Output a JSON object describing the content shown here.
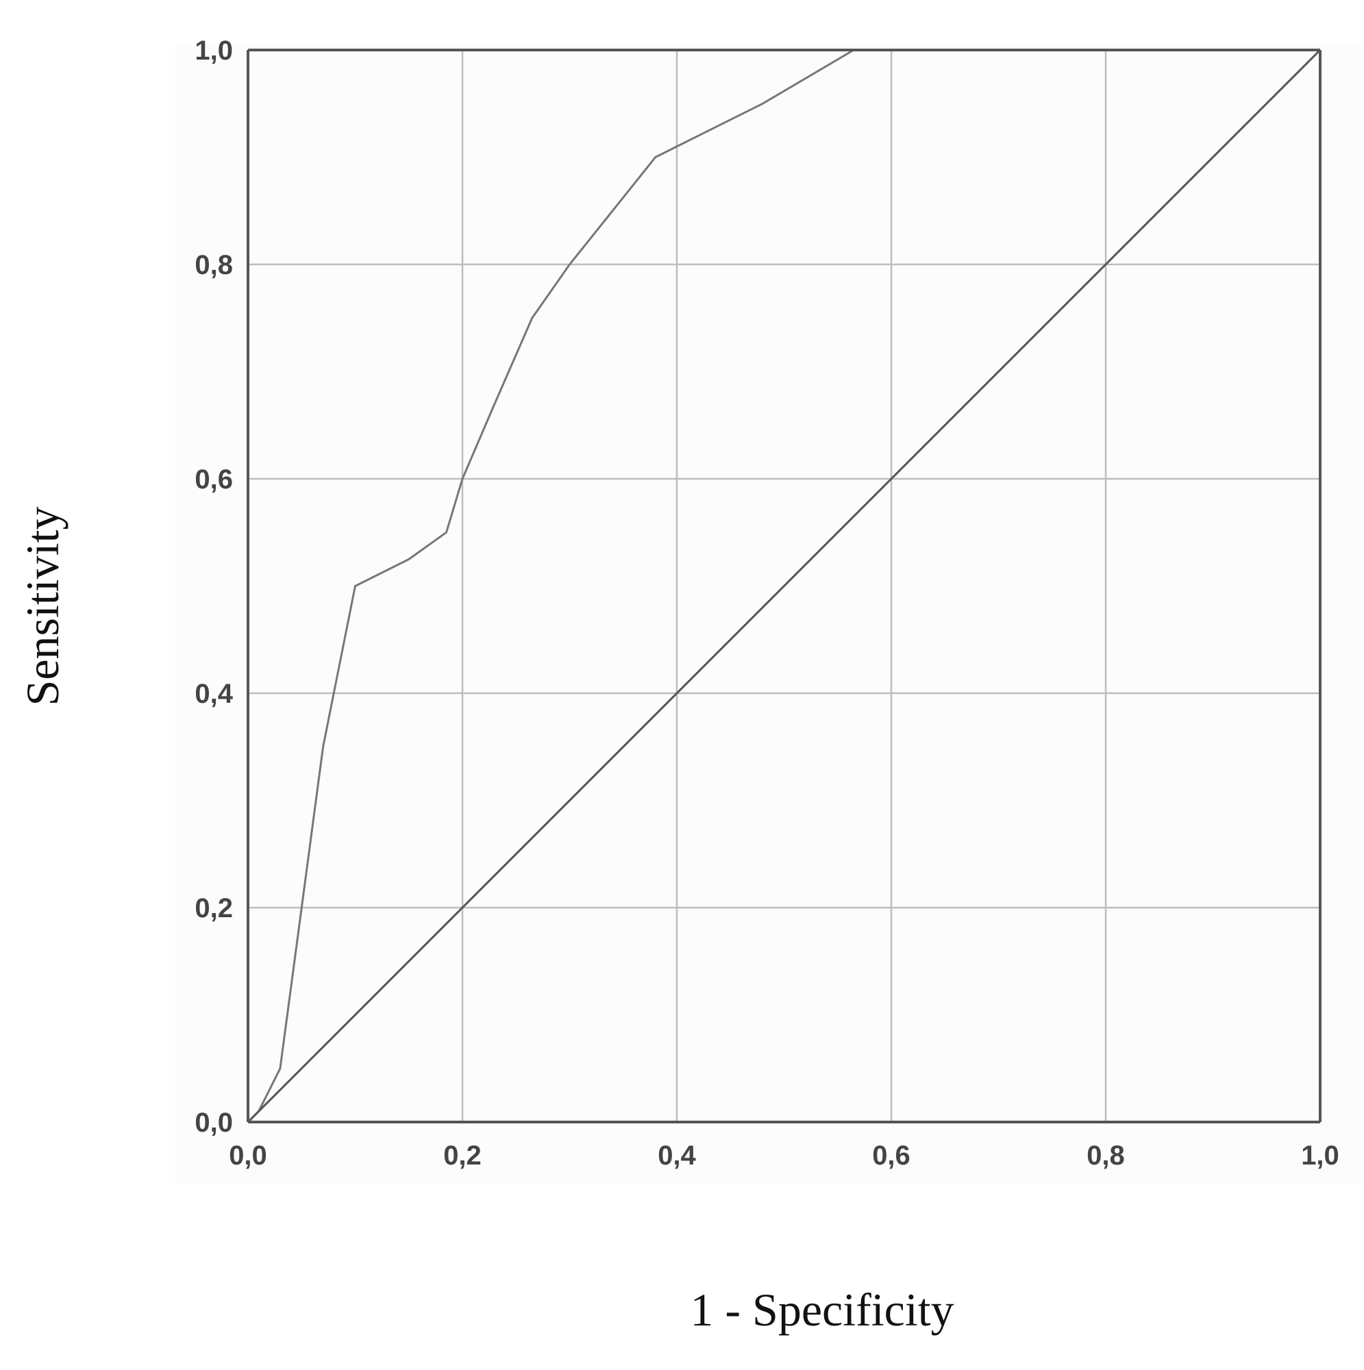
{
  "chart_data": {
    "type": "line",
    "title": "",
    "xlabel": "1 - Specificity",
    "ylabel": "Sensitivity",
    "xlim": [
      0,
      1
    ],
    "ylim": [
      0,
      1
    ],
    "grid": true,
    "x_ticks": [
      0,
      0.2,
      0.4,
      0.6,
      0.8,
      1.0
    ],
    "x_tick_labels": [
      "0,0",
      "0,2",
      "0,4",
      "0,6",
      "0,8",
      "1,0"
    ],
    "y_ticks": [
      0,
      0.2,
      0.4,
      0.6,
      0.8,
      1.0
    ],
    "y_tick_labels": [
      "0,0",
      "0,2",
      "0,4",
      "0,6",
      "0,8",
      "1,0"
    ],
    "series": [
      {
        "role": "roc-curve",
        "color": "#777777",
        "x": [
          0.0,
          0.01,
          0.02,
          0.03,
          0.05,
          0.07,
          0.08,
          0.1,
          0.15,
          0.185,
          0.2,
          0.23,
          0.265,
          0.3,
          0.34,
          0.38,
          0.42,
          0.48,
          0.565,
          0.7,
          0.85,
          1.0
        ],
        "y": [
          0.0,
          0.01,
          0.03,
          0.05,
          0.2,
          0.35,
          0.4,
          0.5,
          0.525,
          0.55,
          0.6,
          0.67,
          0.75,
          0.8,
          0.85,
          0.9,
          0.92,
          0.95,
          1.0,
          1.0,
          1.0,
          1.0
        ]
      },
      {
        "role": "reference-line",
        "color": "#555555",
        "x": [
          0.0,
          1.0
        ],
        "y": [
          0.0,
          1.0
        ]
      }
    ]
  }
}
